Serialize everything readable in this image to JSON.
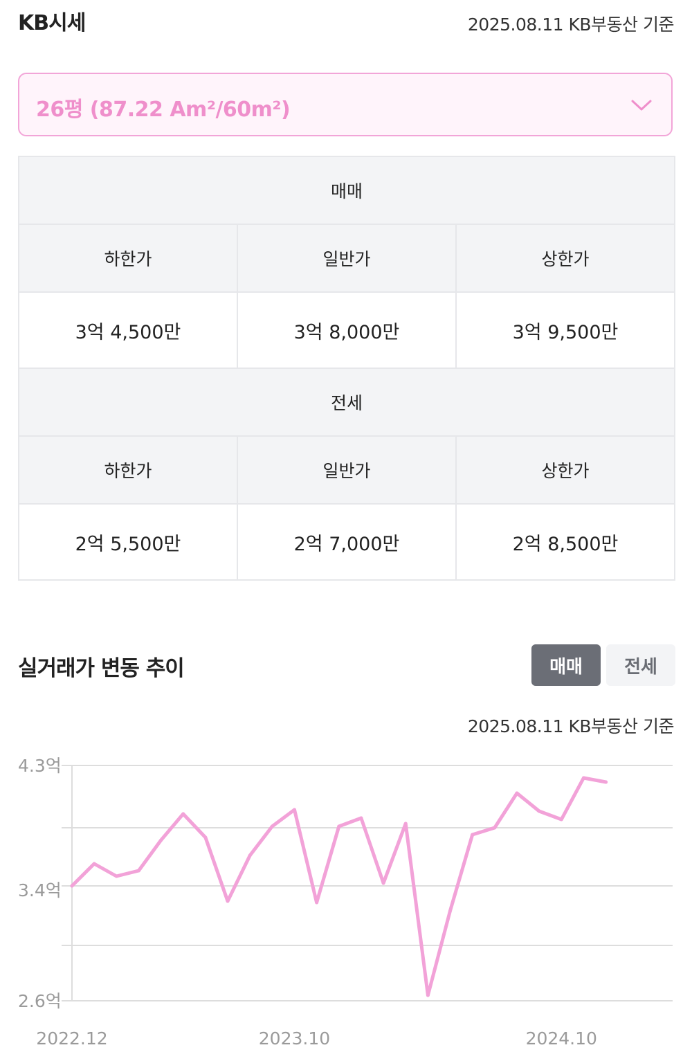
{
  "header": {
    "title": "KB시세",
    "basis": "2025.08.11 KB부동산 기준"
  },
  "selector": {
    "value": "26평 (87.22 Am²/60m²)",
    "icon": "chevron-down-icon"
  },
  "price_table": {
    "sale": {
      "section": "매매",
      "columns": [
        "하한가",
        "일반가",
        "상한가"
      ],
      "values": [
        "3억 4,500만",
        "3억 8,000만",
        "3억 9,500만"
      ]
    },
    "jeonse": {
      "section": "전세",
      "columns": [
        "하한가",
        "일반가",
        "상한가"
      ],
      "values": [
        "2억 5,500만",
        "2억 7,000만",
        "2억 8,500만"
      ]
    }
  },
  "trend": {
    "title": "실거래가 변동 추이",
    "toggle": {
      "sale": "매매",
      "jeonse": "전세",
      "active": "매매"
    },
    "basis": "2025.08.11 KB부동산 기준"
  },
  "chart_data": {
    "type": "line",
    "color": "#f2a2d8",
    "ylim": [
      2.6,
      4.3
    ],
    "y_ticks": [
      {
        "value": 4.3,
        "label": "4.3억"
      },
      {
        "value": 3.4,
        "label": "3.4억"
      },
      {
        "value": 2.6,
        "label": "2.6억"
      }
    ],
    "x_ticks": [
      {
        "value": 0,
        "label": "2022.12"
      },
      {
        "value": 10,
        "label": "2023.10"
      },
      {
        "value": 22,
        "label": "2024.10"
      }
    ],
    "x_max": 27,
    "gridlines": [
      2.6,
      3.0,
      3.43,
      3.85,
      4.3
    ],
    "series": [
      {
        "points": [
          [
            0,
            3.43
          ],
          [
            1,
            3.59
          ],
          [
            2,
            3.5
          ],
          [
            3,
            3.54
          ],
          [
            4,
            3.76
          ],
          [
            5,
            3.95
          ],
          [
            6,
            3.78
          ],
          [
            7,
            3.32
          ],
          [
            8,
            3.65
          ],
          [
            9,
            3.86
          ],
          [
            10,
            3.98
          ],
          [
            11,
            3.31
          ],
          [
            12,
            3.86
          ],
          [
            13,
            3.92
          ],
          [
            14,
            3.45
          ],
          [
            15,
            3.88
          ],
          [
            16,
            2.64
          ],
          [
            17,
            3.25
          ],
          [
            18,
            3.8
          ],
          [
            19,
            3.85
          ],
          [
            20,
            4.1
          ],
          [
            21,
            3.97
          ],
          [
            22,
            3.91
          ],
          [
            23,
            4.21
          ],
          [
            24,
            4.18
          ]
        ]
      }
    ]
  }
}
